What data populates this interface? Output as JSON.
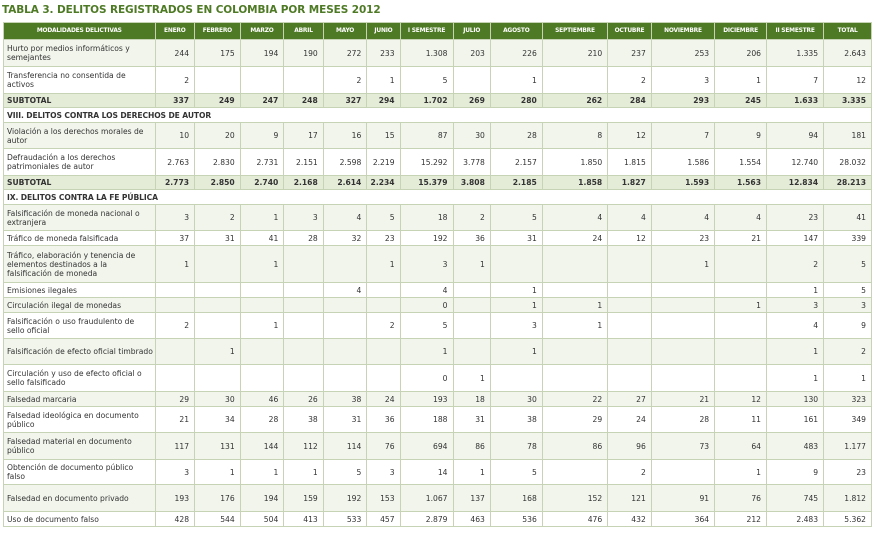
{
  "title": {
    "prefix": "TABLA 3.",
    "text": " DELITOS REGISTRADOS EN COLOMBIA POR MESES 2012"
  },
  "columns": [
    "MODALIDADES DELICTIVAS",
    "ENERO",
    "FEBRERO",
    "MARZO",
    "ABRIL",
    "MAYO",
    "JUNIO",
    "I SEMESTRE",
    "JULIO",
    "AGOSTO",
    "SEPTIEMBRE",
    "OCTUBRE",
    "NOVIEMBRE",
    "DICIEMBRE",
    "II SEMESTRE",
    "TOTAL"
  ],
  "rows": [
    {
      "type": "data",
      "label": "Hurto por medios informáticos y semejantes",
      "values": [
        "244",
        "175",
        "194",
        "190",
        "272",
        "233",
        "1.308",
        "203",
        "226",
        "210",
        "237",
        "253",
        "206",
        "1.335",
        "2.643"
      ],
      "h": 27
    },
    {
      "type": "data",
      "label": "Transferencia no consentida de activos",
      "values": [
        "2",
        "",
        "",
        "",
        "2",
        "1",
        "5",
        "",
        "1",
        "",
        "2",
        "3",
        "1",
        "7",
        "12"
      ],
      "h": 27
    },
    {
      "type": "subtotal",
      "label": "SUBTOTAL",
      "values": [
        "337",
        "249",
        "247",
        "248",
        "327",
        "294",
        "1.702",
        "269",
        "280",
        "262",
        "284",
        "293",
        "245",
        "1.633",
        "3.335"
      ]
    },
    {
      "type": "section",
      "label": "VIII. DELITOS CONTRA LOS DERECHOS DE AUTOR"
    },
    {
      "type": "data",
      "label": "Violación a los derechos morales de autor",
      "values": [
        "10",
        "20",
        "9",
        "17",
        "16",
        "15",
        "87",
        "30",
        "28",
        "8",
        "12",
        "7",
        "9",
        "94",
        "181"
      ],
      "h": 26
    },
    {
      "type": "data",
      "label": "Defraudación a los derechos patrimoniales de autor",
      "values": [
        "2.763",
        "2.830",
        "2.731",
        "2.151",
        "2.598",
        "2.219",
        "15.292",
        "3.778",
        "2.157",
        "1.850",
        "1.815",
        "1.586",
        "1.554",
        "12.740",
        "28.032"
      ],
      "h": 27
    },
    {
      "type": "subtotal",
      "label": "SUBTOTAL",
      "values": [
        "2.773",
        "2.850",
        "2.740",
        "2.168",
        "2.614",
        "2.234",
        "15.379",
        "3.808",
        "2.185",
        "1.858",
        "1.827",
        "1.593",
        "1.563",
        "12.834",
        "28.213"
      ]
    },
    {
      "type": "section",
      "label": "IX. DELITOS CONTRA LA FE PÚBLICA"
    },
    {
      "type": "data",
      "label": "Falsificación de moneda nacional o extranjera",
      "values": [
        "3",
        "2",
        "1",
        "3",
        "4",
        "5",
        "18",
        "2",
        "5",
        "4",
        "4",
        "4",
        "4",
        "23",
        "41"
      ],
      "h": 26
    },
    {
      "type": "data",
      "label": "Tráfico de moneda falsificada",
      "values": [
        "37",
        "31",
        "41",
        "28",
        "32",
        "23",
        "192",
        "36",
        "31",
        "24",
        "12",
        "23",
        "21",
        "147",
        "339"
      ],
      "h": 15
    },
    {
      "type": "data",
      "label": "Tráfico, elaboración y tenencia de elementos destinados a la falsificación de moneda",
      "values": [
        "1",
        "",
        "1",
        "",
        "",
        "1",
        "3",
        "1",
        "",
        "",
        "",
        "1",
        "",
        "2",
        "5"
      ],
      "h": 37
    },
    {
      "type": "data",
      "label": "Emisiones ilegales",
      "values": [
        "",
        "",
        "",
        "",
        "4",
        "",
        "4",
        "",
        "1",
        "",
        "",
        "",
        "",
        "1",
        "5"
      ],
      "h": 15
    },
    {
      "type": "data",
      "label": "Circulación ilegal de monedas",
      "values": [
        "",
        "",
        "",
        "",
        "",
        "",
        "0",
        "",
        "1",
        "1",
        "",
        "",
        "1",
        "3",
        "3"
      ],
      "h": 15
    },
    {
      "type": "data",
      "label": "Falsificación o uso fraudulento de sello oficial",
      "values": [
        "2",
        "",
        "1",
        "",
        "",
        "2",
        "5",
        "",
        "3",
        "1",
        "",
        "",
        "",
        "4",
        "9"
      ],
      "h": 26
    },
    {
      "type": "data",
      "label": "Falsificación de efecto oficial timbrado",
      "values": [
        "",
        "1",
        "",
        "",
        "",
        "",
        "1",
        "",
        "1",
        "",
        "",
        "",
        "",
        "1",
        "2"
      ],
      "h": 26
    },
    {
      "type": "data",
      "label": "Circulación y uso de efecto oficial o sello falsificado",
      "values": [
        "",
        "",
        "",
        "",
        "",
        "",
        "0",
        "1",
        "",
        "",
        "",
        "",
        "",
        "1",
        "1"
      ],
      "h": 27
    },
    {
      "type": "data",
      "label": "Falsedad marcaria",
      "values": [
        "29",
        "30",
        "46",
        "26",
        "38",
        "24",
        "193",
        "18",
        "30",
        "22",
        "27",
        "21",
        "12",
        "130",
        "323"
      ],
      "h": 15
    },
    {
      "type": "data",
      "label": "Falsedad ideológica en documento público",
      "values": [
        "21",
        "34",
        "28",
        "38",
        "31",
        "36",
        "188",
        "31",
        "38",
        "29",
        "24",
        "28",
        "11",
        "161",
        "349"
      ],
      "h": 26
    },
    {
      "type": "data",
      "label": "Falsedad material en documento público",
      "values": [
        "117",
        "131",
        "144",
        "112",
        "114",
        "76",
        "694",
        "86",
        "78",
        "86",
        "96",
        "73",
        "64",
        "483",
        "1.177"
      ],
      "h": 27
    },
    {
      "type": "data",
      "label": "Obtención de documento público falso",
      "values": [
        "3",
        "1",
        "1",
        "1",
        "5",
        "3",
        "14",
        "1",
        "5",
        "",
        "2",
        "",
        "1",
        "9",
        "23"
      ],
      "h": 25
    },
    {
      "type": "data",
      "label": "Falsedad en documento privado",
      "values": [
        "193",
        "176",
        "194",
        "159",
        "192",
        "153",
        "1.067",
        "137",
        "168",
        "152",
        "121",
        "91",
        "76",
        "745",
        "1.812"
      ],
      "h": 27
    },
    {
      "type": "data",
      "label": "Uso de documento falso",
      "values": [
        "428",
        "544",
        "504",
        "413",
        "533",
        "457",
        "2.879",
        "463",
        "536",
        "476",
        "432",
        "364",
        "212",
        "2.483",
        "5.362"
      ],
      "h": 15
    }
  ]
}
